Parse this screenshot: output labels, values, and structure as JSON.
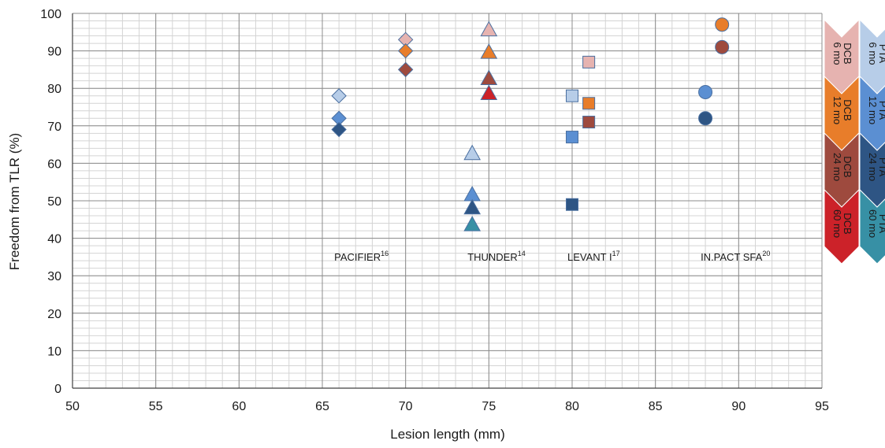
{
  "chart_data": {
    "type": "scatter",
    "xlabel": "Lesion length (mm)",
    "ylabel": "Freedom from TLR (%)",
    "xlim": [
      50,
      95
    ],
    "ylim": [
      0,
      100
    ],
    "x_ticks": [
      50,
      55,
      60,
      65,
      70,
      75,
      80,
      85,
      90,
      95
    ],
    "y_ticks": [
      0,
      10,
      20,
      30,
      40,
      50,
      60,
      70,
      80,
      90,
      100
    ],
    "grid": true,
    "legend_position": "right",
    "trials": [
      {
        "name": "PACIFIER",
        "ref": "16",
        "marker": "diamond",
        "x": 66
      },
      {
        "name": "THUNDER",
        "ref": "14",
        "marker": "triangle",
        "x": 74
      },
      {
        "name": "LEVANT I",
        "ref": "17",
        "marker": "square",
        "x": 80
      },
      {
        "name": "IN.PACT SFA",
        "ref": "20",
        "marker": "circle",
        "x": 88
      }
    ],
    "trial_label_y": 34,
    "legend": [
      {
        "group": "DCB",
        "time": "6 mo",
        "color": "#e6b3b0"
      },
      {
        "group": "DCB",
        "time": "12 mo",
        "color": "#e87d2a"
      },
      {
        "group": "DCB",
        "time": "24 mo",
        "color": "#9e4a3e"
      },
      {
        "group": "DCB",
        "time": "60 mo",
        "color": "#cc2229"
      },
      {
        "group": "PTA",
        "time": "6 mo",
        "color": "#b7cde8"
      },
      {
        "group": "PTA",
        "time": "12 mo",
        "color": "#5b8fd2"
      },
      {
        "group": "PTA",
        "time": "24 mo",
        "color": "#2e5584"
      },
      {
        "group": "PTA",
        "time": "60 mo",
        "color": "#3790a5"
      }
    ],
    "series": [
      {
        "trial": "PACIFIER",
        "arm": "PTA",
        "followup": "6 mo",
        "marker": "diamond",
        "color": "#b7cde8",
        "x": 66,
        "y": 78
      },
      {
        "trial": "PACIFIER",
        "arm": "PTA",
        "followup": "12 mo",
        "marker": "diamond",
        "color": "#5b8fd2",
        "x": 66,
        "y": 72
      },
      {
        "trial": "PACIFIER",
        "arm": "PTA",
        "followup": "24 mo",
        "marker": "diamond",
        "color": "#2e5584",
        "x": 66,
        "y": 69
      },
      {
        "trial": "PACIFIER",
        "arm": "DCB",
        "followup": "6 mo",
        "marker": "diamond",
        "color": "#e6b3b0",
        "x": 70,
        "y": 93
      },
      {
        "trial": "PACIFIER",
        "arm": "DCB",
        "followup": "12 mo",
        "marker": "diamond",
        "color": "#e87d2a",
        "x": 70,
        "y": 90
      },
      {
        "trial": "PACIFIER",
        "arm": "DCB",
        "followup": "24 mo",
        "marker": "diamond",
        "color": "#9e4a3e",
        "x": 70,
        "y": 85
      },
      {
        "trial": "THUNDER",
        "arm": "PTA",
        "followup": "6 mo",
        "marker": "triangle",
        "color": "#b7cde8",
        "x": 74,
        "y": 62.5
      },
      {
        "trial": "THUNDER",
        "arm": "PTA",
        "followup": "12 mo",
        "marker": "triangle",
        "color": "#5b8fd2",
        "x": 74,
        "y": 51.5
      },
      {
        "trial": "THUNDER",
        "arm": "PTA",
        "followup": "24 mo",
        "marker": "triangle",
        "color": "#2e5584",
        "x": 74,
        "y": 48
      },
      {
        "trial": "THUNDER",
        "arm": "PTA",
        "followup": "60 mo",
        "marker": "triangle",
        "color": "#3790a5",
        "x": 74,
        "y": 43.5
      },
      {
        "trial": "THUNDER",
        "arm": "DCB",
        "followup": "6 mo",
        "marker": "triangle",
        "color": "#e6b3b0",
        "x": 75,
        "y": 95.5
      },
      {
        "trial": "THUNDER",
        "arm": "DCB",
        "followup": "12 mo",
        "marker": "triangle",
        "color": "#e87d2a",
        "x": 75,
        "y": 89.5
      },
      {
        "trial": "THUNDER",
        "arm": "DCB",
        "followup": "24 mo",
        "marker": "triangle",
        "color": "#9e4a3e",
        "x": 75,
        "y": 82.5
      },
      {
        "trial": "THUNDER",
        "arm": "DCB",
        "followup": "60 mo",
        "marker": "triangle",
        "color": "#cc2229",
        "x": 75,
        "y": 78.5
      },
      {
        "trial": "LEVANT I",
        "arm": "PTA",
        "followup": "6 mo",
        "marker": "square",
        "color": "#b7cde8",
        "x": 80,
        "y": 78
      },
      {
        "trial": "LEVANT I",
        "arm": "PTA",
        "followup": "12 mo",
        "marker": "square",
        "color": "#5b8fd2",
        "x": 80,
        "y": 67
      },
      {
        "trial": "LEVANT I",
        "arm": "PTA",
        "followup": "24 mo",
        "marker": "square",
        "color": "#2e5584",
        "x": 80,
        "y": 49
      },
      {
        "trial": "LEVANT I",
        "arm": "DCB",
        "followup": "6 mo",
        "marker": "square",
        "color": "#e6b3b0",
        "x": 81,
        "y": 87
      },
      {
        "trial": "LEVANT I",
        "arm": "DCB",
        "followup": "12 mo",
        "marker": "square",
        "color": "#e87d2a",
        "x": 81,
        "y": 76
      },
      {
        "trial": "LEVANT I",
        "arm": "DCB",
        "followup": "24 mo",
        "marker": "square",
        "color": "#9e4a3e",
        "x": 81,
        "y": 71
      },
      {
        "trial": "IN.PACT SFA",
        "arm": "PTA",
        "followup": "12 mo",
        "marker": "circle",
        "color": "#5b8fd2",
        "x": 88,
        "y": 79
      },
      {
        "trial": "IN.PACT SFA",
        "arm": "PTA",
        "followup": "24 mo",
        "marker": "circle",
        "color": "#2e5584",
        "x": 88,
        "y": 72
      },
      {
        "trial": "IN.PACT SFA",
        "arm": "DCB",
        "followup": "12 mo",
        "marker": "circle",
        "color": "#e87d2a",
        "x": 89,
        "y": 97
      },
      {
        "trial": "IN.PACT SFA",
        "arm": "DCB",
        "followup": "24 mo",
        "marker": "circle",
        "color": "#9e4a3e",
        "x": 89,
        "y": 91
      }
    ]
  }
}
